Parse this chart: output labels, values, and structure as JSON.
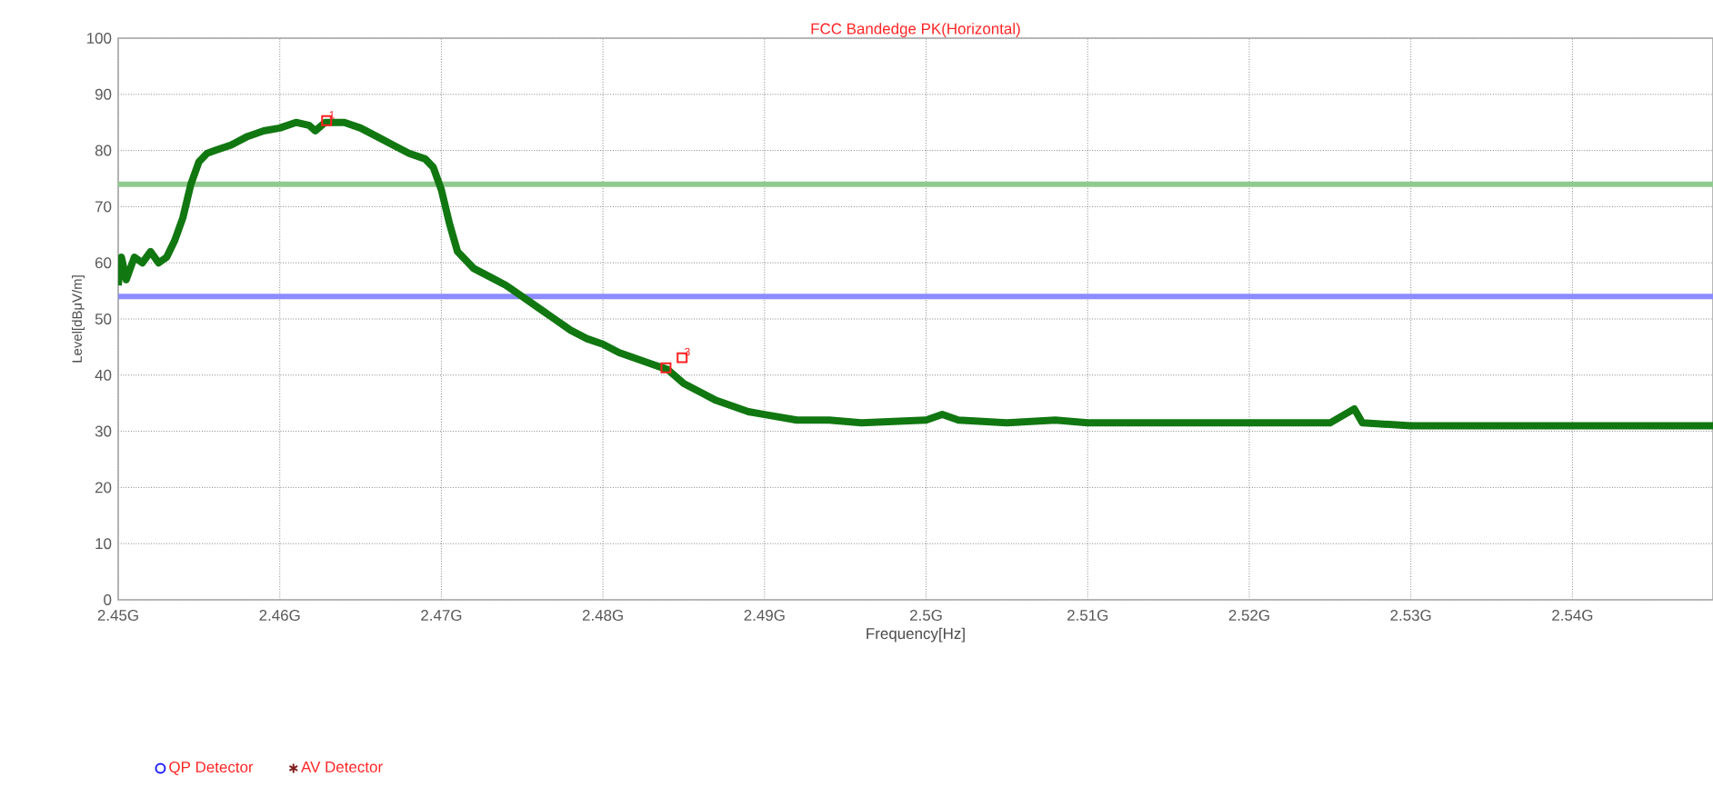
{
  "chart_data": {
    "type": "line",
    "title": "FCC Bandedge PK(Horizontal)",
    "xlabel": "Frequency[Hz]",
    "ylabel": "Level[dBμV/m]",
    "xlim": [
      2.45,
      2.5487
    ],
    "ylim": [
      0,
      100
    ],
    "xticks": [
      {
        "value": 2.45,
        "label": "2.45G"
      },
      {
        "value": 2.46,
        "label": "2.46G"
      },
      {
        "value": 2.47,
        "label": "2.47G"
      },
      {
        "value": 2.48,
        "label": "2.48G"
      },
      {
        "value": 2.49,
        "label": "2.49G"
      },
      {
        "value": 2.5,
        "label": "2.5G"
      },
      {
        "value": 2.51,
        "label": "2.51G"
      },
      {
        "value": 2.52,
        "label": "2.52G"
      },
      {
        "value": 2.53,
        "label": "2.53G"
      },
      {
        "value": 2.54,
        "label": "2.54G"
      }
    ],
    "yticks": [
      0,
      10,
      20,
      30,
      40,
      50,
      60,
      70,
      80,
      90,
      100
    ],
    "grid": true,
    "legend": "bottom left",
    "series": [
      {
        "color": "#117711",
        "x": [
          2.45,
          2.4502,
          2.4505,
          2.451,
          2.4515,
          2.452,
          2.4525,
          2.453,
          2.4535,
          2.454,
          2.4545,
          2.455,
          2.4555,
          2.456,
          2.457,
          2.458,
          2.459,
          2.46,
          2.461,
          2.4618,
          2.4622,
          2.4628,
          2.464,
          2.465,
          2.466,
          2.467,
          2.468,
          2.469,
          2.4695,
          2.47,
          2.4705,
          2.471,
          2.472,
          2.473,
          2.474,
          2.475,
          2.476,
          2.477,
          2.478,
          2.479,
          2.48,
          2.481,
          2.482,
          2.483,
          2.484,
          2.485,
          2.486,
          2.487,
          2.488,
          2.489,
          2.49,
          2.492,
          2.494,
          2.496,
          2.5,
          2.501,
          2.502,
          2.505,
          2.508,
          2.51,
          2.515,
          2.52,
          2.525,
          2.5265,
          2.527,
          2.53,
          2.535,
          2.54,
          2.545,
          2.5487
        ],
        "values": [
          56,
          61,
          57,
          61,
          60,
          62,
          60,
          61,
          64,
          68,
          74,
          78,
          79.5,
          80,
          81,
          82.5,
          83.5,
          84,
          85,
          84.5,
          83.5,
          85,
          85,
          84,
          82.5,
          81,
          79.5,
          78.5,
          77,
          73,
          67,
          62,
          59,
          57.5,
          56,
          54,
          52,
          50,
          48,
          46.5,
          45.5,
          44,
          43,
          42,
          41,
          38.5,
          37,
          35.5,
          34.5,
          33.5,
          33,
          32,
          32,
          31.5,
          32,
          33,
          32,
          31.5,
          32,
          31.5,
          31.5,
          31.5,
          31.5,
          34,
          31.5,
          31,
          31,
          31,
          31,
          31
        ]
      },
      {
        "type": "scatter",
        "color": "#ff2020",
        "marker": "square",
        "x": [
          2.4629,
          2.4839,
          2.4849
        ],
        "values": [
          85.3,
          41.3,
          43.1
        ]
      },
      {
        "type": "scatter",
        "name": "QP Detector",
        "color": "#2020ff",
        "marker": "circle"
      },
      {
        "type": "scatter",
        "name": "AV Detector",
        "color": "#802020",
        "marker": "star"
      }
    ],
    "ref_lines": [
      {
        "axis": "y",
        "value": 74,
        "color": "#8fcb8f"
      },
      {
        "axis": "y",
        "value": 54,
        "color": "#8c8cff"
      }
    ],
    "annotations": [
      {
        "text": "1",
        "x": 2.4629,
        "y": 85.3
      },
      {
        "text": "3",
        "x": 2.4849,
        "y": 43.1
      }
    ]
  }
}
